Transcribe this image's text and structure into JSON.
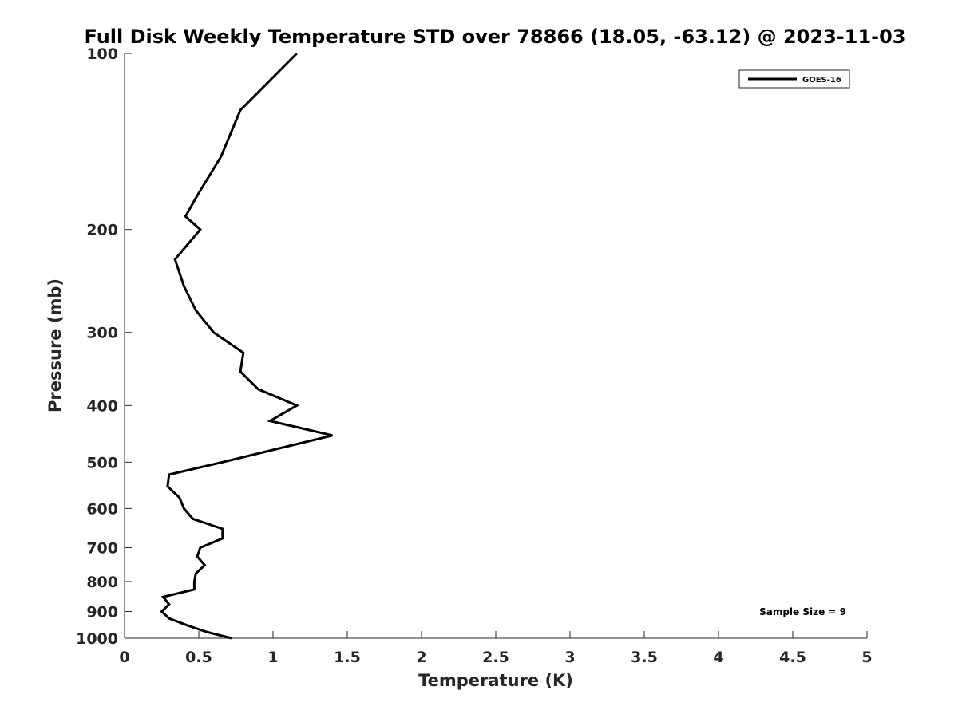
{
  "chart_data": {
    "type": "line",
    "title": "Full Disk Weekly Temperature STD over 78866 (18.05, -63.12) @ 2023-11-03",
    "xlabel": "Temperature (K)",
    "ylabel": "Pressure (mb)",
    "xlim": [
      0,
      5
    ],
    "ylim": [
      100,
      1000
    ],
    "y_scale": "log",
    "y_reversed": true,
    "grid": false,
    "legend_placement": "top-right",
    "x_ticks": [
      "0",
      "0.5",
      "1",
      "1.5",
      "2",
      "2.5",
      "3",
      "3.5",
      "4",
      "4.5",
      "5"
    ],
    "y_ticks": [
      "100",
      "200",
      "300",
      "400",
      "500",
      "600",
      "700",
      "800",
      "900",
      "1000"
    ],
    "annotation": "Sample Size = 9",
    "series": [
      {
        "name": "GOES-16",
        "color": "#000000",
        "points": [
          [
            1.16,
            100
          ],
          [
            0.78,
            125
          ],
          [
            0.65,
            150
          ],
          [
            0.49,
            175
          ],
          [
            0.41,
            190
          ],
          [
            0.51,
            200
          ],
          [
            0.34,
            225
          ],
          [
            0.4,
            250
          ],
          [
            0.48,
            275
          ],
          [
            0.6,
            300
          ],
          [
            0.8,
            325
          ],
          [
            0.78,
            350
          ],
          [
            0.9,
            375
          ],
          [
            1.16,
            400
          ],
          [
            0.98,
            425
          ],
          [
            1.4,
            450
          ],
          [
            1.02,
            475
          ],
          [
            0.66,
            500
          ],
          [
            0.3,
            525
          ],
          [
            0.29,
            550
          ],
          [
            0.37,
            575
          ],
          [
            0.4,
            600
          ],
          [
            0.46,
            625
          ],
          [
            0.66,
            650
          ],
          [
            0.66,
            675
          ],
          [
            0.51,
            700
          ],
          [
            0.49,
            725
          ],
          [
            0.54,
            750
          ],
          [
            0.48,
            775
          ],
          [
            0.47,
            800
          ],
          [
            0.47,
            825
          ],
          [
            0.26,
            850
          ],
          [
            0.3,
            875
          ],
          [
            0.25,
            900
          ],
          [
            0.3,
            925
          ],
          [
            0.42,
            950
          ],
          [
            0.55,
            975
          ],
          [
            0.72,
            1000
          ]
        ]
      }
    ]
  }
}
